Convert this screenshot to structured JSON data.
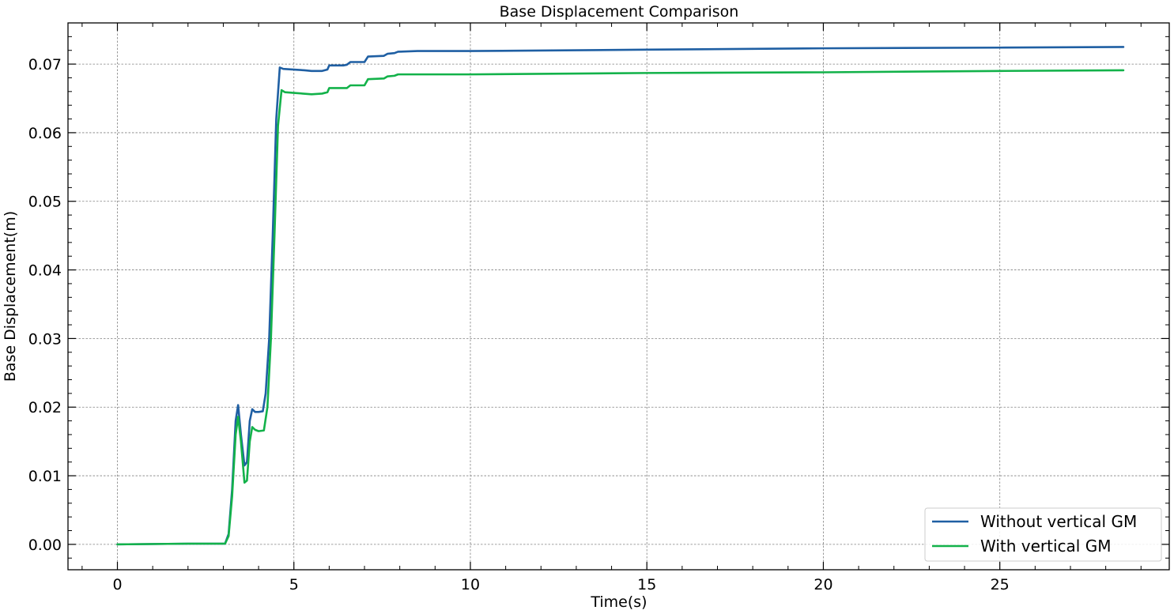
{
  "chart_data": {
    "type": "line",
    "title": "Base Displacement Comparison",
    "xlabel": "Time(s)",
    "ylabel": "Base Displacement(m)",
    "xlim": [
      -1.4,
      29.8
    ],
    "ylim": [
      -0.0037,
      0.076
    ],
    "x_ticks": [
      0,
      5,
      10,
      15,
      20,
      25
    ],
    "x_tick_labels": [
      "0",
      "5",
      "10",
      "15",
      "20",
      "25"
    ],
    "y_ticks": [
      0.0,
      0.01,
      0.02,
      0.03,
      0.04,
      0.05,
      0.06,
      0.07
    ],
    "y_tick_labels": [
      "0.00",
      "0.01",
      "0.02",
      "0.03",
      "0.04",
      "0.05",
      "0.06",
      "0.07"
    ],
    "grid": true,
    "legend_position": "bottom-right",
    "series": [
      {
        "name": "Without vertical GM",
        "color": "#1f5fa3",
        "points": [
          [
            0,
            0
          ],
          [
            2.0,
            0.0001
          ],
          [
            3.05,
            0.0001
          ],
          [
            3.15,
            0.0015
          ],
          [
            3.25,
            0.008
          ],
          [
            3.35,
            0.018
          ],
          [
            3.42,
            0.0203
          ],
          [
            3.5,
            0.016
          ],
          [
            3.6,
            0.0115
          ],
          [
            3.67,
            0.012
          ],
          [
            3.75,
            0.018
          ],
          [
            3.82,
            0.0197
          ],
          [
            3.9,
            0.0193
          ],
          [
            4.0,
            0.0193
          ],
          [
            4.12,
            0.0194
          ],
          [
            4.2,
            0.022
          ],
          [
            4.3,
            0.03
          ],
          [
            4.4,
            0.045
          ],
          [
            4.5,
            0.062
          ],
          [
            4.6,
            0.0695
          ],
          [
            4.7,
            0.0693
          ],
          [
            5.0,
            0.0692
          ],
          [
            5.3,
            0.0691
          ],
          [
            5.5,
            0.069
          ],
          [
            5.8,
            0.069
          ],
          [
            5.95,
            0.0692
          ],
          [
            6.0,
            0.0698
          ],
          [
            6.4,
            0.0698
          ],
          [
            6.5,
            0.0699
          ],
          [
            6.6,
            0.0703
          ],
          [
            7.0,
            0.0703
          ],
          [
            7.1,
            0.0711
          ],
          [
            7.55,
            0.0712
          ],
          [
            7.65,
            0.0715
          ],
          [
            7.85,
            0.0716
          ],
          [
            7.95,
            0.0718
          ],
          [
            8.5,
            0.0719
          ],
          [
            10,
            0.0719
          ],
          [
            15,
            0.0721
          ],
          [
            20,
            0.0723
          ],
          [
            25,
            0.0724
          ],
          [
            28.5,
            0.0725
          ]
        ]
      },
      {
        "name": "With vertical GM",
        "color": "#13b24a",
        "points": [
          [
            0,
            0
          ],
          [
            2.0,
            0.0001
          ],
          [
            3.05,
            0.0001
          ],
          [
            3.15,
            0.0012
          ],
          [
            3.25,
            0.007
          ],
          [
            3.35,
            0.016
          ],
          [
            3.42,
            0.0186
          ],
          [
            3.5,
            0.015
          ],
          [
            3.6,
            0.009
          ],
          [
            3.67,
            0.0093
          ],
          [
            3.75,
            0.015
          ],
          [
            3.82,
            0.0171
          ],
          [
            3.9,
            0.0167
          ],
          [
            4.0,
            0.0165
          ],
          [
            4.15,
            0.0166
          ],
          [
            4.25,
            0.02
          ],
          [
            4.35,
            0.03
          ],
          [
            4.45,
            0.045
          ],
          [
            4.55,
            0.061
          ],
          [
            4.65,
            0.0662
          ],
          [
            4.75,
            0.0659
          ],
          [
            5.0,
            0.0658
          ],
          [
            5.5,
            0.0656
          ],
          [
            5.8,
            0.0657
          ],
          [
            5.95,
            0.0659
          ],
          [
            6.0,
            0.0665
          ],
          [
            6.5,
            0.0665
          ],
          [
            6.6,
            0.0669
          ],
          [
            7.0,
            0.0669
          ],
          [
            7.1,
            0.0678
          ],
          [
            7.55,
            0.0679
          ],
          [
            7.65,
            0.0682
          ],
          [
            7.85,
            0.0683
          ],
          [
            7.95,
            0.0685
          ],
          [
            8.5,
            0.0685
          ],
          [
            10,
            0.0685
          ],
          [
            15,
            0.0687
          ],
          [
            20,
            0.0688
          ],
          [
            25,
            0.069
          ],
          [
            28.5,
            0.0691
          ]
        ]
      }
    ]
  }
}
